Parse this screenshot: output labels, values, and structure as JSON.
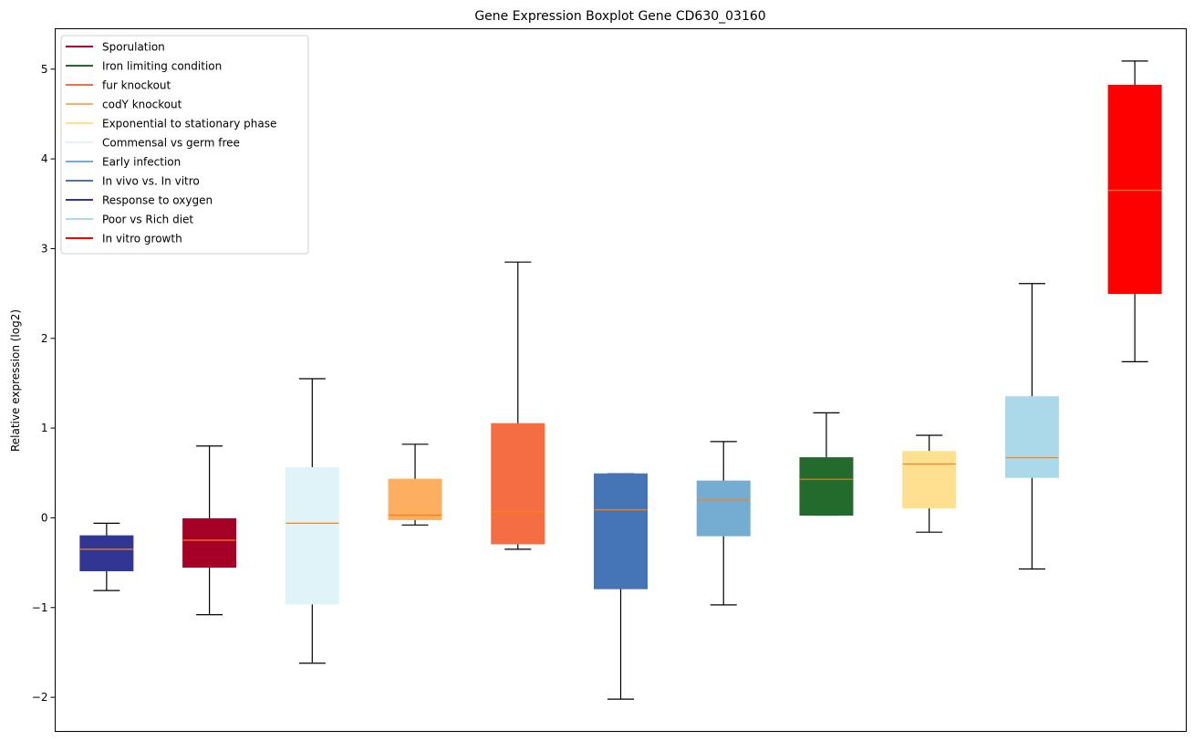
{
  "chart_data": {
    "type": "boxplot",
    "title": "Gene Expression Boxplot Gene CD630_03160",
    "xlabel": "",
    "ylabel": "Relative expression (log2)",
    "ylim": [
      -2.38,
      5.45
    ],
    "yticks": [
      -2,
      -1,
      0,
      1,
      2,
      3,
      4,
      5
    ],
    "ytick_labels": [
      "−2",
      "−1",
      "0",
      "1",
      "2",
      "3",
      "4",
      "5"
    ],
    "grid": false,
    "legend_position": "top-left",
    "median_color": "#ff7f0e",
    "boxes": [
      {
        "name": "Response to oxygen",
        "color": "#313695",
        "whislo": -0.81,
        "q1": -0.59,
        "med": -0.35,
        "q3": -0.2,
        "whishi": -0.06
      },
      {
        "name": "Sporulation",
        "color": "#a50026",
        "whislo": -1.08,
        "q1": -0.55,
        "med": -0.25,
        "q3": -0.01,
        "whishi": 0.8
      },
      {
        "name": "Commensal vs germ free",
        "color": "#e0f3f8",
        "whislo": -1.62,
        "q1": -0.96,
        "med": -0.06,
        "q3": 0.56,
        "whishi": 1.55
      },
      {
        "name": "codY knockout",
        "color": "#fdae61",
        "whislo": -0.08,
        "q1": -0.02,
        "med": 0.03,
        "q3": 0.43,
        "whishi": 0.82
      },
      {
        "name": "fur knockout",
        "color": "#f46d43",
        "whislo": -0.35,
        "q1": -0.29,
        "med": 0.07,
        "q3": 1.05,
        "whishi": 2.85
      },
      {
        "name": "In vivo vs. In vitro",
        "color": "#4575b4",
        "whislo": -2.02,
        "q1": -0.79,
        "med": 0.09,
        "q3": 0.49,
        "whishi": 0.49
      },
      {
        "name": "Early infection",
        "color": "#74add1",
        "whislo": -0.97,
        "q1": -0.2,
        "med": 0.2,
        "q3": 0.41,
        "whishi": 0.85
      },
      {
        "name": "Iron limiting condition",
        "color": "#226b2d",
        "whislo": 0.03,
        "q1": 0.03,
        "med": 0.43,
        "q3": 0.67,
        "whishi": 1.17
      },
      {
        "name": "Exponential to stationary phase",
        "color": "#fee090",
        "whislo": -0.16,
        "q1": 0.11,
        "med": 0.6,
        "q3": 0.74,
        "whishi": 0.92
      },
      {
        "name": "Poor vs Rich diet",
        "color": "#abd9e9",
        "whislo": -0.57,
        "q1": 0.45,
        "med": 0.67,
        "q3": 1.35,
        "whishi": 2.61
      },
      {
        "name": "In vitro growth",
        "color": "#ff0000",
        "whislo": 1.74,
        "q1": 2.5,
        "med": 3.65,
        "q3": 4.82,
        "whishi": 5.09
      }
    ],
    "legend": [
      {
        "label": "Sporulation",
        "color": "#a50026"
      },
      {
        "label": "Iron limiting condition",
        "color": "#226b2d"
      },
      {
        "label": "fur knockout",
        "color": "#f46d43"
      },
      {
        "label": "codY knockout",
        "color": "#fdae61"
      },
      {
        "label": "Exponential to stationary phase",
        "color": "#fee090"
      },
      {
        "label": "Commensal vs germ free",
        "color": "#e0f3f8"
      },
      {
        "label": "Early infection",
        "color": "#74add1"
      },
      {
        "label": "In vivo vs. In vitro",
        "color": "#4575b4"
      },
      {
        "label": "Response to oxygen",
        "color": "#313695"
      },
      {
        "label": "Poor vs Rich diet",
        "color": "#abd9e9"
      },
      {
        "label": "In vitro growth",
        "color": "#ff0000"
      }
    ]
  }
}
